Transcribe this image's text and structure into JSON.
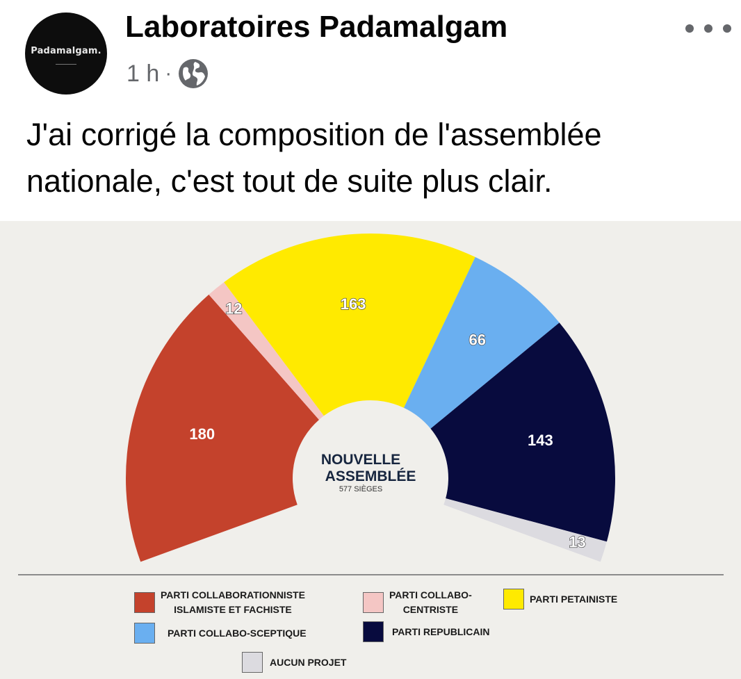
{
  "post": {
    "author": "Laboratoires Padamalgam",
    "avatar_text": "Padamalgam.",
    "time": "1 h",
    "separator": "·",
    "visibility_icon": "globe-icon",
    "more_icon": "more-dots-icon",
    "text": "J'ai corrigé la composition de l'assemblée nationale, c'est tout de suite plus clair."
  },
  "center": {
    "title_line1": "NOUVELLE",
    "title_line2": "ASSEMBLÉE",
    "subtitle": "577 SIÈGES"
  },
  "chart_data": {
    "type": "pie",
    "subtype": "hemicycle",
    "total_label": "577 SIÈGES",
    "series": [
      {
        "name": "PARTI COLLABORATIONNISTE ISLAMISTE ET FACHISTE",
        "value": 180,
        "label": "180",
        "color": "#c4422c"
      },
      {
        "name": "PARTI COLLABO-CENTRISTE",
        "value": 12,
        "label": "12",
        "color": "#f4c6c4"
      },
      {
        "name": "PARTI PETAINISTE",
        "value": 163,
        "label": "163",
        "color": "#ffea00"
      },
      {
        "name": "PARTI COLLABO-SCEPTIQUE",
        "value": 66,
        "label": "66",
        "color": "#6aaff0"
      },
      {
        "name": "PARTI REPUBLICAIN",
        "value": 143,
        "label": "143",
        "color": "#080b3e"
      },
      {
        "name": "AUCUN PROJET",
        "value": 13,
        "label": "13",
        "color": "#dcdbe0"
      }
    ],
    "legend": [
      {
        "label": "PARTI COLLABORATIONNISTE\nISLAMISTE ET FACHISTE",
        "color": "#c4422c"
      },
      {
        "label": "PARTI COLLABO-\nCENTRISTE",
        "color": "#f4c6c4"
      },
      {
        "label": "PARTI PETAINISTE",
        "color": "#ffea00"
      },
      {
        "label": "PARTI COLLABO-SCEPTIQUE",
        "color": "#6aaff0"
      },
      {
        "label": "PARTI REPUBLICAIN",
        "color": "#080b3e"
      },
      {
        "label": "AUCUN PROJET",
        "color": "#dcdbe0"
      }
    ],
    "legend_placement": "bottom"
  }
}
